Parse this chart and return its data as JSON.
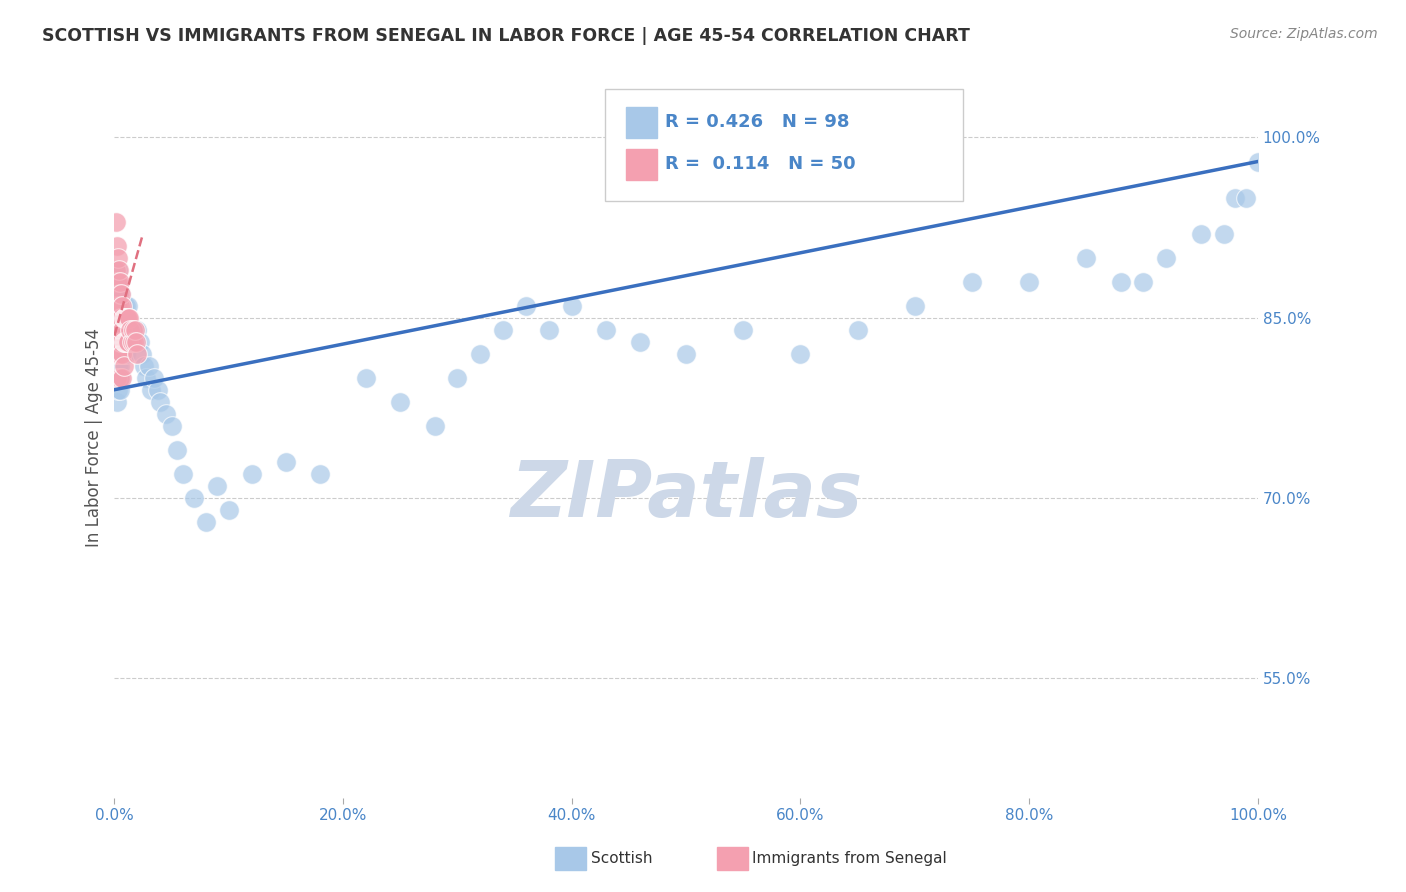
{
  "title": "SCOTTISH VS IMMIGRANTS FROM SENEGAL IN LABOR FORCE | AGE 45-54 CORRELATION CHART",
  "source_text": "Source: ZipAtlas.com",
  "ylabel": "In Labor Force | Age 45-54",
  "watermark": "ZIPatlas",
  "blue_R": 0.426,
  "blue_N": 98,
  "pink_R": 0.114,
  "pink_N": 50,
  "blue_color": "#a8c8e8",
  "pink_color": "#f4a0b0",
  "blue_line_color": "#3a6fbf",
  "pink_line_color": "#e07080",
  "legend_blue_label": "Scottish",
  "legend_pink_label": "Immigrants from Senegal",
  "blue_scatter_x": [
    0.001,
    0.001,
    0.001,
    0.002,
    0.002,
    0.002,
    0.002,
    0.002,
    0.003,
    0.003,
    0.003,
    0.003,
    0.003,
    0.003,
    0.004,
    0.004,
    0.004,
    0.004,
    0.004,
    0.005,
    0.005,
    0.005,
    0.005,
    0.005,
    0.006,
    0.006,
    0.006,
    0.006,
    0.007,
    0.007,
    0.007,
    0.008,
    0.008,
    0.008,
    0.009,
    0.009,
    0.01,
    0.01,
    0.01,
    0.011,
    0.011,
    0.012,
    0.012,
    0.013,
    0.014,
    0.015,
    0.016,
    0.017,
    0.018,
    0.019,
    0.02,
    0.022,
    0.024,
    0.026,
    0.028,
    0.03,
    0.032,
    0.035,
    0.038,
    0.04,
    0.045,
    0.05,
    0.055,
    0.06,
    0.07,
    0.08,
    0.09,
    0.1,
    0.12,
    0.15,
    0.18,
    0.22,
    0.25,
    0.28,
    0.3,
    0.32,
    0.34,
    0.36,
    0.38,
    0.4,
    0.43,
    0.46,
    0.5,
    0.55,
    0.6,
    0.65,
    0.7,
    0.75,
    0.8,
    0.85,
    0.88,
    0.9,
    0.92,
    0.95,
    0.97,
    0.98,
    0.99,
    1.0
  ],
  "blue_scatter_y": [
    0.87,
    0.84,
    0.8,
    0.88,
    0.86,
    0.84,
    0.82,
    0.78,
    0.89,
    0.87,
    0.85,
    0.83,
    0.81,
    0.79,
    0.88,
    0.86,
    0.84,
    0.82,
    0.8,
    0.87,
    0.85,
    0.83,
    0.81,
    0.79,
    0.87,
    0.85,
    0.83,
    0.8,
    0.86,
    0.84,
    0.82,
    0.86,
    0.84,
    0.82,
    0.85,
    0.83,
    0.86,
    0.84,
    0.82,
    0.85,
    0.83,
    0.86,
    0.84,
    0.85,
    0.84,
    0.83,
    0.84,
    0.83,
    0.84,
    0.83,
    0.84,
    0.83,
    0.82,
    0.81,
    0.8,
    0.81,
    0.79,
    0.8,
    0.79,
    0.78,
    0.77,
    0.76,
    0.74,
    0.72,
    0.7,
    0.68,
    0.71,
    0.69,
    0.72,
    0.73,
    0.72,
    0.8,
    0.78,
    0.76,
    0.8,
    0.82,
    0.84,
    0.86,
    0.84,
    0.86,
    0.84,
    0.83,
    0.82,
    0.84,
    0.82,
    0.84,
    0.86,
    0.88,
    0.88,
    0.9,
    0.88,
    0.88,
    0.9,
    0.92,
    0.92,
    0.95,
    0.95,
    0.98
  ],
  "pink_scatter_x": [
    0.001,
    0.001,
    0.001,
    0.001,
    0.002,
    0.002,
    0.002,
    0.002,
    0.002,
    0.002,
    0.003,
    0.003,
    0.003,
    0.003,
    0.003,
    0.004,
    0.004,
    0.004,
    0.004,
    0.005,
    0.005,
    0.005,
    0.005,
    0.005,
    0.006,
    0.006,
    0.006,
    0.007,
    0.007,
    0.007,
    0.007,
    0.008,
    0.008,
    0.008,
    0.009,
    0.009,
    0.01,
    0.01,
    0.011,
    0.011,
    0.012,
    0.012,
    0.013,
    0.014,
    0.015,
    0.016,
    0.017,
    0.018,
    0.019,
    0.02
  ],
  "pink_scatter_y": [
    0.93,
    0.89,
    0.86,
    0.82,
    0.91,
    0.88,
    0.86,
    0.84,
    0.82,
    0.8,
    0.9,
    0.88,
    0.86,
    0.84,
    0.82,
    0.89,
    0.87,
    0.85,
    0.83,
    0.88,
    0.86,
    0.84,
    0.82,
    0.8,
    0.87,
    0.85,
    0.83,
    0.86,
    0.84,
    0.82,
    0.8,
    0.85,
    0.83,
    0.81,
    0.85,
    0.83,
    0.85,
    0.83,
    0.85,
    0.83,
    0.85,
    0.83,
    0.85,
    0.84,
    0.83,
    0.84,
    0.83,
    0.84,
    0.83,
    0.82
  ],
  "xlim": [
    0.0,
    1.0
  ],
  "ylim": [
    0.45,
    1.05
  ],
  "yticks": [
    0.55,
    0.7,
    0.85,
    1.0
  ],
  "ytick_labels": [
    "55.0%",
    "70.0%",
    "85.0%",
    "100.0%"
  ],
  "xticks": [
    0.0,
    0.2,
    0.4,
    0.6,
    0.8,
    1.0
  ],
  "xtick_labels": [
    "0.0%",
    "20.0%",
    "40.0%",
    "60.0%",
    "80.0%",
    "100.0%"
  ],
  "grid_color": "#cccccc",
  "background_color": "#ffffff",
  "watermark_color": "#cdd8e8",
  "title_color": "#333333",
  "axis_label_color": "#555555",
  "tick_label_color": "#4a86c8",
  "source_color": "#888888"
}
